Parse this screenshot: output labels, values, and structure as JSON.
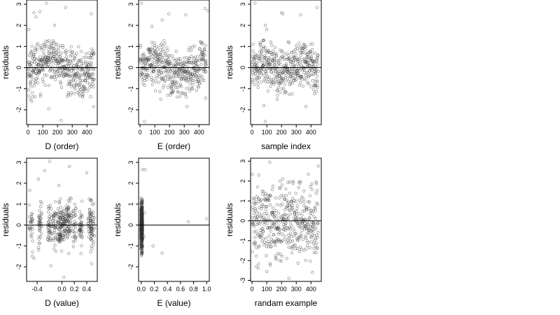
{
  "chart_data": [
    {
      "type": "scatter",
      "xlabel": "D (order)",
      "ylabel": "residuals",
      "xlim": [
        -10,
        470
      ],
      "ylim": [
        -2.7,
        3.2
      ],
      "xticks": [
        0,
        100,
        200,
        300,
        400
      ],
      "yticks": [
        -2,
        -1,
        0,
        1,
        2,
        3
      ],
      "reference_line_y": 0,
      "point_count": 450,
      "outliers": [
        [
          5,
          1.8
        ],
        [
          40,
          2.6
        ],
        [
          55,
          2.4
        ],
        [
          80,
          2.65
        ],
        [
          125,
          3.05
        ],
        [
          180,
          2.0
        ],
        [
          255,
          2.85
        ],
        [
          430,
          2.55
        ],
        [
          15,
          -1.5
        ],
        [
          25,
          -1.6
        ],
        [
          140,
          -1.95
        ],
        [
          225,
          -2.5
        ],
        [
          445,
          -1.85
        ]
      ]
    },
    {
      "type": "scatter",
      "xlabel": "E (order)",
      "ylabel": "residuals",
      "xlim": [
        -10,
        470
      ],
      "ylim": [
        -2.7,
        3.2
      ],
      "xticks": [
        0,
        100,
        200,
        300,
        400
      ],
      "yticks": [
        -2,
        -1,
        0,
        1,
        2,
        3
      ],
      "reference_line_y": 0,
      "point_count": 450,
      "outliers": [
        [
          10,
          3.05
        ],
        [
          80,
          1.95
        ],
        [
          150,
          2.25
        ],
        [
          195,
          2.55
        ],
        [
          310,
          2.5
        ],
        [
          440,
          2.8
        ],
        [
          460,
          2.7
        ],
        [
          30,
          -2.55
        ],
        [
          140,
          -1.5
        ],
        [
          320,
          -1.85
        ],
        [
          445,
          -1.45
        ]
      ]
    },
    {
      "type": "scatter",
      "xlabel": "sample index",
      "ylabel": "residuals",
      "xlim": [
        -10,
        470
      ],
      "ylim": [
        -2.7,
        3.2
      ],
      "xticks": [
        0,
        100,
        200,
        300,
        400
      ],
      "yticks": [
        -2,
        -1,
        0,
        1,
        2,
        3
      ],
      "reference_line_y": 0,
      "point_count": 450,
      "outliers": [
        [
          20,
          3.05
        ],
        [
          90,
          2.0
        ],
        [
          100,
          1.8
        ],
        [
          200,
          2.6
        ],
        [
          210,
          2.55
        ],
        [
          330,
          2.5
        ],
        [
          440,
          2.85
        ],
        [
          80,
          -1.8
        ],
        [
          90,
          -2.55
        ],
        [
          170,
          -1.5
        ],
        [
          365,
          -1.85
        ]
      ]
    },
    {
      "type": "scatter",
      "xlabel": "D (value)",
      "ylabel": "residuals",
      "xlim": [
        -0.57,
        0.57
      ],
      "ylim": [
        -2.7,
        3.2
      ],
      "xticks": [
        -0.4,
        0.0,
        0.2,
        0.4
      ],
      "xtick_labels": [
        "-0.4",
        "0.0",
        "0.2",
        "0.4"
      ],
      "yticks": [
        -2,
        -1,
        0,
        1,
        2,
        3
      ],
      "reference_line_y": 0,
      "point_count": 450,
      "clusters_x": [
        -0.5,
        -0.35,
        -0.2,
        -0.12,
        -0.05,
        0.0,
        0.06,
        0.12,
        0.2,
        0.3,
        0.45,
        0.5
      ],
      "outliers": [
        [
          -0.52,
          1.65
        ],
        [
          -0.38,
          2.2
        ],
        [
          -0.28,
          2.6
        ],
        [
          -0.2,
          3.05
        ],
        [
          -0.05,
          1.9
        ],
        [
          0.12,
          2.8
        ],
        [
          0.4,
          2.5
        ],
        [
          -0.48,
          -1.5
        ],
        [
          -0.45,
          -1.6
        ],
        [
          -0.18,
          -1.95
        ],
        [
          0.03,
          -2.5
        ],
        [
          0.48,
          -1.85
        ]
      ]
    },
    {
      "type": "scatter",
      "xlabel": "E (value)",
      "ylabel": "residuals",
      "xlim": [
        -0.04,
        1.04
      ],
      "ylim": [
        -2.7,
        3.2
      ],
      "xticks": [
        0.0,
        0.2,
        0.4,
        0.6,
        0.8,
        1.0
      ],
      "xtick_labels": [
        "0.0",
        "0.2",
        "0.4",
        "0.6",
        "0.8",
        "1.0"
      ],
      "yticks": [
        -2,
        -1,
        0,
        1,
        2,
        3
      ],
      "reference_line_y": 0,
      "point_count": 450,
      "cluster_x_range": [
        -0.005,
        0.02
      ],
      "outliers": [
        [
          0.02,
          2.65
        ],
        [
          0.06,
          2.65
        ],
        [
          0.18,
          -1.0
        ],
        [
          0.32,
          -1.35
        ],
        [
          0.72,
          0.15
        ],
        [
          1.0,
          0.3
        ],
        [
          0.05,
          0.6
        ],
        [
          0.04,
          -0.55
        ]
      ]
    },
    {
      "type": "scatter",
      "xlabel": "randam example",
      "ylabel": "residuals",
      "xlim": [
        -10,
        470
      ],
      "ylim": [
        -3.05,
        3.15
      ],
      "xticks": [
        0,
        100,
        200,
        300,
        400
      ],
      "yticks": [
        -3,
        -2,
        -1,
        0,
        1,
        2,
        3
      ],
      "reference_line_y": 0,
      "point_count": 450,
      "distribution": "standard normal noise",
      "outliers": [
        [
          120,
          2.95
        ],
        [
          450,
          2.75
        ],
        [
          100,
          -2.55
        ],
        [
          250,
          -2.9
        ],
        [
          30,
          -2.3
        ],
        [
          410,
          -2.6
        ]
      ]
    }
  ]
}
